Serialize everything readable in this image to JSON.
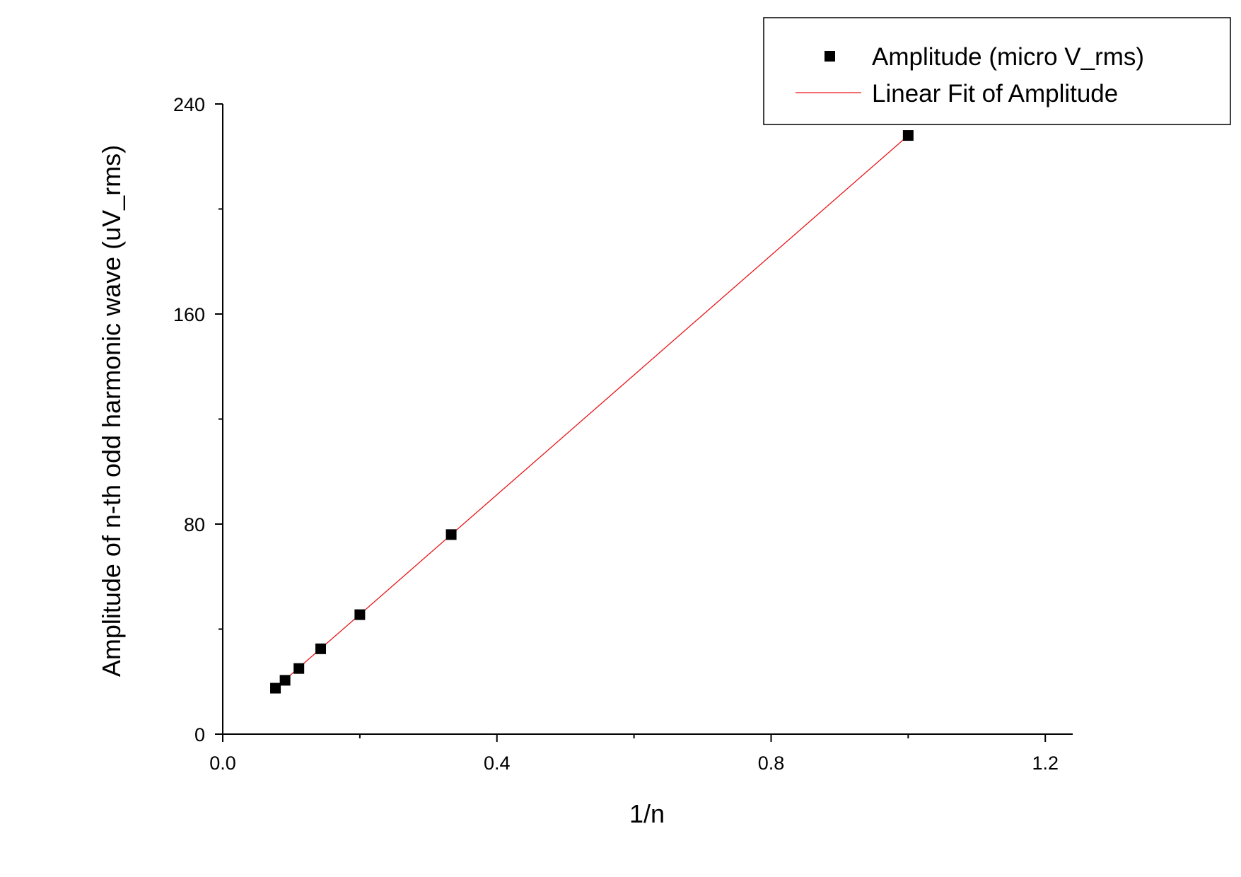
{
  "chart_data": {
    "type": "scatter",
    "title": "",
    "xlabel": "1/n",
    "ylabel": "Amplitude of n-th odd harmonic wave (uV_rms)",
    "xlim": [
      0.0,
      1.24
    ],
    "ylim": [
      0,
      240
    ],
    "x_ticks": [
      0.0,
      0.4,
      0.8,
      1.2
    ],
    "x_tick_labels": [
      "0.0",
      "0.4",
      "0.8",
      "1.2"
    ],
    "x_minor_ticks": [
      0.2,
      0.6,
      1.0
    ],
    "y_ticks": [
      0,
      80,
      160,
      240
    ],
    "y_tick_labels": [
      "0",
      "80",
      "160",
      "240"
    ],
    "y_minor_ticks": [
      40,
      120,
      200
    ],
    "grid": false,
    "legend_position": "top-right",
    "series": [
      {
        "name": "Amplitude (micro V_rms)",
        "kind": "scatter",
        "marker": "square",
        "color": "#000000",
        "x": [
          1.0,
          0.3333,
          0.2,
          0.1429,
          0.1111,
          0.0909,
          0.0769
        ],
        "y": [
          228,
          76,
          45.5,
          32.5,
          25,
          20.5,
          17.5
        ]
      },
      {
        "name": "Linear Fit of Amplitude",
        "kind": "line",
        "color": "#e8171c",
        "x": [
          0.0769,
          1.0
        ],
        "y": [
          17.5,
          228
        ]
      }
    ]
  }
}
